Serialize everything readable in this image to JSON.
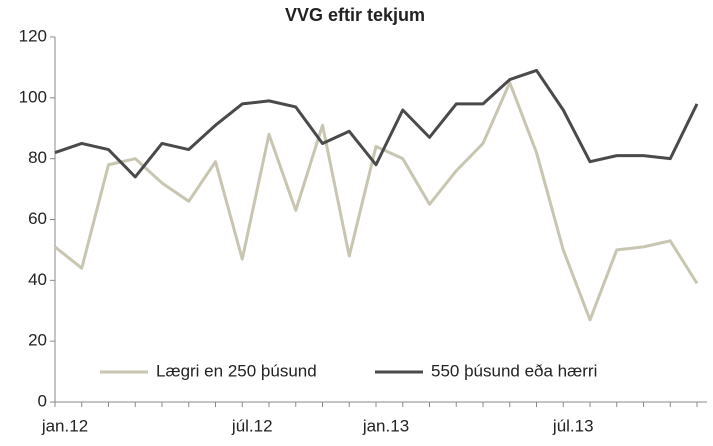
{
  "chart_data": {
    "type": "line",
    "title": "VVG eftir tekjum",
    "categories": [
      "jan.12",
      null,
      null,
      null,
      null,
      null,
      null,
      "júl.12",
      null,
      null,
      null,
      null,
      "jan.13",
      null,
      null,
      null,
      null,
      null,
      null,
      "júl.13",
      null,
      null,
      null,
      null,
      null
    ],
    "series": [
      {
        "name": "Lægri en 250 þúsund",
        "color": "#c8c6b0",
        "values": [
          51,
          44,
          78,
          80,
          72,
          66,
          79,
          47,
          88,
          63,
          91,
          48,
          84,
          80,
          65,
          76,
          85,
          105,
          82,
          50,
          27,
          50,
          51,
          53,
          39
        ]
      },
      {
        "name": "550 þúsund eða hærri",
        "color": "#4a4a4a",
        "values": [
          82,
          85,
          83,
          74,
          85,
          83,
          91,
          98,
          99,
          97,
          85,
          89,
          78,
          96,
          87,
          98,
          98,
          106,
          109,
          96,
          79,
          81,
          81,
          80,
          98
        ]
      }
    ],
    "ylim": [
      0,
      120
    ],
    "yticks": [
      0,
      20,
      40,
      60,
      80,
      100,
      120
    ],
    "legend": "bottom"
  }
}
